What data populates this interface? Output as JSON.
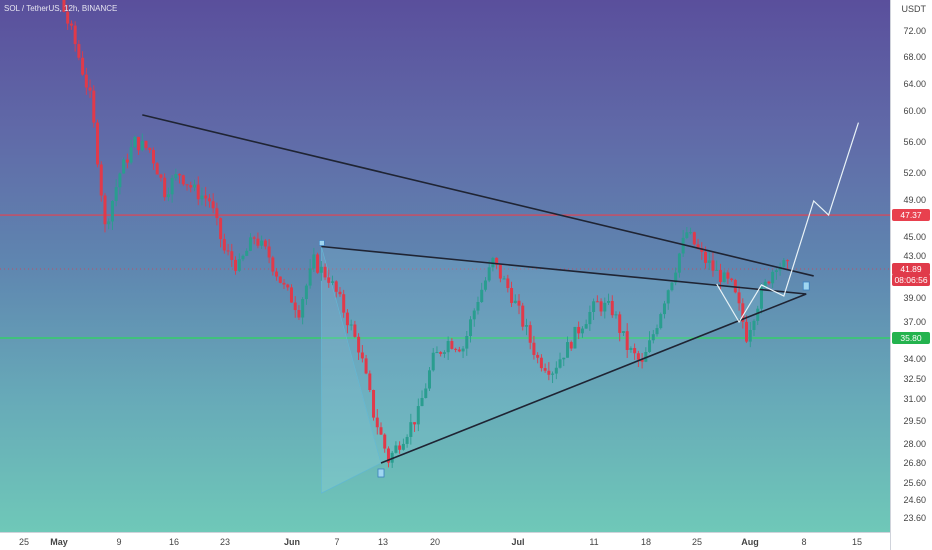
{
  "symbol_title": "SOL / TetherUS, 12h, BINANCE",
  "currency": "USDT",
  "colors": {
    "up": "#2a9d8f",
    "down": "#e03a4a",
    "trendline": "#1f2433",
    "resistance": "#e8404e",
    "support": "#2bd95a",
    "projection": "#e9f3f7"
  },
  "price_axis": [
    "72.00",
    "68.00",
    "64.00",
    "60.00",
    "56.00",
    "52.00",
    "49.00",
    "45.00",
    "43.00",
    "39.00",
    "37.00",
    "34.00",
    "32.50",
    "31.00",
    "29.50",
    "28.00",
    "26.80",
    "25.60",
    "24.60",
    "23.60"
  ],
  "price_labels": {
    "resistance": "47.37",
    "current": "41.89",
    "current_time": "08:06:56",
    "support": "35.80"
  },
  "time_axis": [
    "25",
    "May",
    "9",
    "16",
    "23",
    "Jun",
    "7",
    "13",
    "20",
    "Jul",
    "11",
    "18",
    "25",
    "Aug",
    "8",
    "15"
  ],
  "chart_data": {
    "type": "candlestick",
    "symbol": "SOL / TetherUS",
    "interval": "12h",
    "exchange": "BINANCE",
    "horizontal_levels": {
      "resistance": 47.37,
      "support": 35.8,
      "current_price": 41.89
    },
    "trendlines": [
      {
        "from": [
          "May 12",
          59.5
        ],
        "to": [
          "Aug 10",
          41.2
        ]
      },
      {
        "from": [
          "Jun 5",
          44.0
        ],
        "to": [
          "Aug 9",
          39.4
        ]
      },
      {
        "from": [
          "Jun 13",
          26.8
        ],
        "to": [
          "Aug 9",
          39.4
        ]
      }
    ],
    "projection_path": [
      [
        "Jul 28",
        40.4
      ],
      [
        "Jul 31",
        37.0
      ],
      [
        "Aug 3",
        40.3
      ],
      [
        "Aug 6",
        39.2
      ],
      [
        "Aug 10",
        48.9
      ],
      [
        "Aug 12",
        47.37
      ],
      [
        "Aug 16",
        58.5
      ]
    ],
    "ohlc_first_last": {
      "start": "Apr 28",
      "end": "Jul 29",
      "first_close": 78.5,
      "last_close": 41.89
    }
  }
}
